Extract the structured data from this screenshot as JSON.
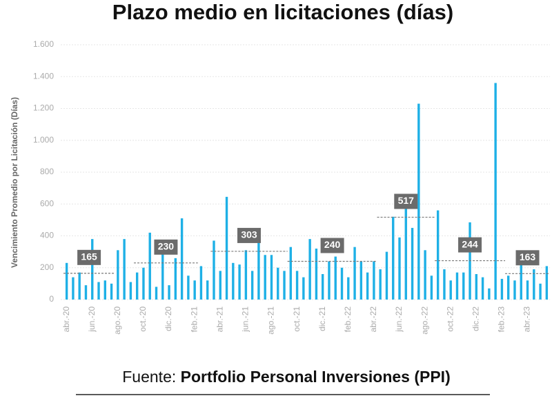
{
  "chart_data": {
    "type": "bar",
    "title": "Plazo medio en licitaciones (días)",
    "y_label": "Vencimiento Promedio por Licitación (Días)",
    "source_prefix": "Fuente:",
    "source_name": "Portfolio Personal Inversiones (PPI)",
    "color": "#1eb0e6",
    "categories": [
      "abr.-20",
      null,
      null,
      null,
      "jun.-20",
      null,
      null,
      null,
      "ago.-20",
      null,
      null,
      null,
      "oct.-20",
      null,
      null,
      null,
      "dic.-20",
      null,
      null,
      null,
      "feb.-21",
      null,
      null,
      null,
      "abr.-21",
      null,
      null,
      null,
      "jun.-21",
      null,
      null,
      null,
      "ago.-21",
      null,
      null,
      null,
      "oct.-21",
      null,
      null,
      null,
      "dic.-21",
      null,
      null,
      null,
      "feb.-22",
      null,
      null,
      null,
      "abr.-22",
      null,
      null,
      null,
      "jun.-22",
      null,
      null,
      null,
      "ago.-22",
      null,
      null,
      null,
      "oct.-22",
      null,
      null,
      null,
      "dic.-22",
      null,
      null,
      null,
      "feb.-23",
      null,
      null,
      null,
      "abr.-23",
      null,
      null,
      null
    ],
    "values": [
      230,
      140,
      170,
      90,
      380,
      110,
      120,
      100,
      310,
      380,
      110,
      170,
      200,
      420,
      80,
      300,
      90,
      260,
      510,
      150,
      120,
      210,
      120,
      370,
      180,
      645,
      230,
      220,
      310,
      180,
      380,
      280,
      280,
      200,
      180,
      330,
      180,
      140,
      380,
      320,
      160,
      240,
      270,
      200,
      140,
      330,
      240,
      170,
      240,
      190,
      300,
      520,
      390,
      595,
      450,
      1230,
      310,
      150,
      560,
      190,
      120,
      170,
      170,
      485,
      160,
      140,
      70,
      1360,
      130,
      150,
      120,
      240,
      120,
      190,
      100,
      210
    ],
    "averages": [
      165,
      230,
      303,
      240,
      517,
      244,
      163
    ],
    "ylim": [
      0,
      1600
    ],
    "yticks": [
      0,
      200,
      400,
      600,
      800,
      {
        "value": 1000,
        "label": "1.000"
      },
      {
        "value": 1200,
        "label": "1.200"
      },
      {
        "value": 1400,
        "label": "1.400"
      },
      {
        "value": 1600,
        "label": "1.600"
      }
    ],
    "grid": true
  }
}
